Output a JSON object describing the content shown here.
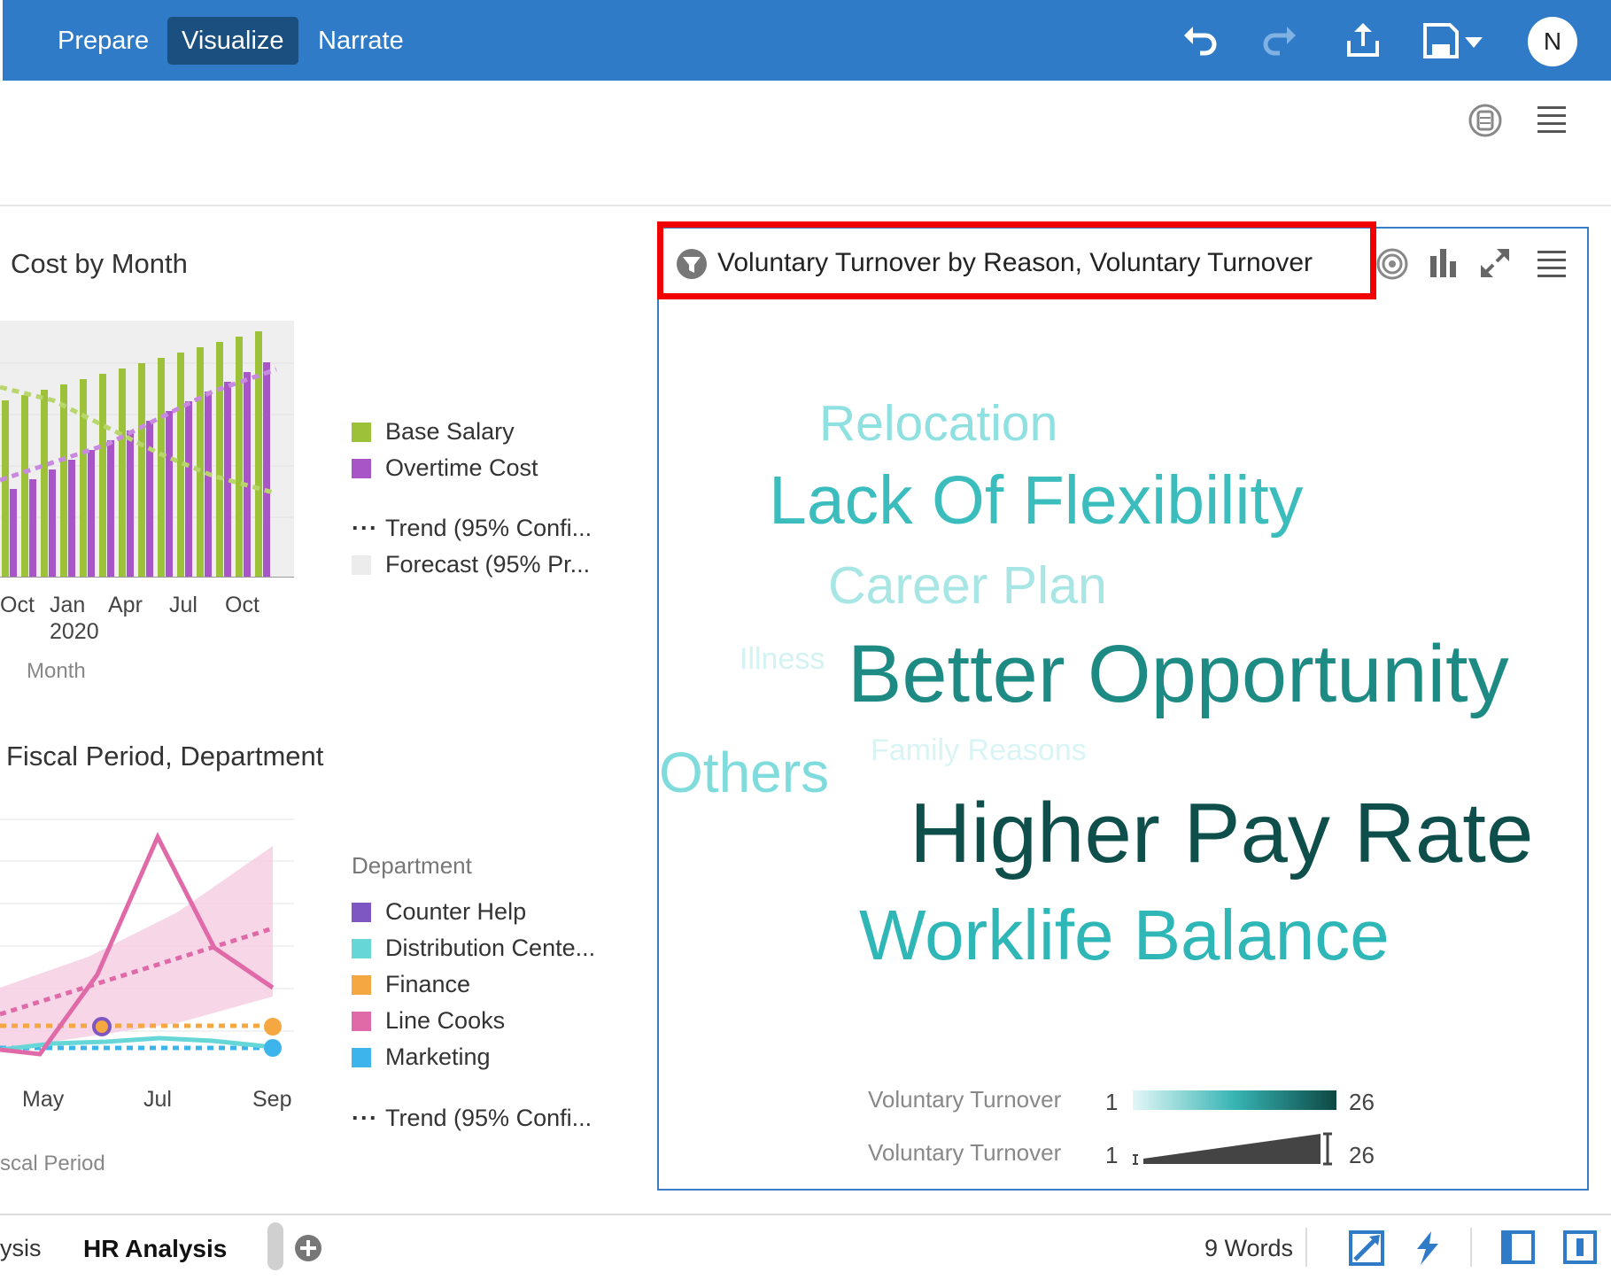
{
  "topbar": {
    "tabs": [
      {
        "label": "Prepare"
      },
      {
        "label": "Visualize",
        "active": true
      },
      {
        "label": "Narrate"
      }
    ],
    "avatar_initial": "N",
    "icons": [
      "undo-icon",
      "redo-icon",
      "export-icon",
      "save-icon",
      "chevron-down-icon"
    ]
  },
  "subbar": {
    "icons": [
      "data-panel-icon",
      "menu-icon"
    ]
  },
  "viz1": {
    "title": "Cost by Month",
    "legend": [
      "Base Salary",
      "Overtime Cost",
      "Trend (95% Confi...",
      "Forecast (95% Pr..."
    ],
    "x_ticks": [
      "Oct",
      "Jan",
      "Apr",
      "Jul",
      "Oct"
    ],
    "x_year": "2020",
    "x_title": "Month",
    "colors": {
      "base_salary": "#9dc23a",
      "overtime": "#a855c8"
    }
  },
  "viz2": {
    "title": "Fiscal Period, Department",
    "legend_title": "Department",
    "legend": [
      "Counter Help",
      "Distribution Cente...",
      "Finance",
      "Line Cooks",
      "Marketing",
      "Trend (95% Confi..."
    ],
    "x_ticks": [
      "May",
      "Jul",
      "Sep"
    ],
    "x_title": "scal Period",
    "colors": {
      "counter_help": "#7e57c2",
      "distribution": "#67d6d6",
      "finance": "#f5a742",
      "line_cooks": "#e06aa8",
      "marketing": "#3db5ec"
    }
  },
  "wordcloud": {
    "title": "Voluntary Turnover by Reason, Voluntary Turnover",
    "words": [
      {
        "text": "Relocation",
        "color": "#8fe0e0"
      },
      {
        "text": "Lack Of Flexibility",
        "color": "#3bbdbd"
      },
      {
        "text": "Career Plan",
        "color": "#a8e6e6"
      },
      {
        "text": "Illness",
        "color": "#d4f2f2"
      },
      {
        "text": "Better Opportunity",
        "color": "#1e8a84"
      },
      {
        "text": "Family Reasons",
        "color": "#d8f4f4"
      },
      {
        "text": "Others",
        "color": "#80dcdc"
      },
      {
        "text": "Higher Pay Rate",
        "color": "#0f4f4b"
      },
      {
        "text": "Worklife Balance",
        "color": "#2fb6b6"
      }
    ],
    "legend": [
      {
        "label": "Voluntary Turnover",
        "min": "1",
        "max": "26",
        "kind": "color"
      },
      {
        "label": "Voluntary Turnover",
        "min": "1",
        "max": "26",
        "kind": "size"
      }
    ],
    "icons": [
      "filter-icon",
      "target-icon",
      "bar-chart-icon",
      "expand-icon",
      "menu-icon"
    ]
  },
  "bottombar": {
    "tabs": [
      {
        "label": "ysis"
      },
      {
        "label": "HR Analysis",
        "active": true
      }
    ],
    "status": "9 Words",
    "icons": [
      "add-page-icon",
      "canvas-settings-icon",
      "auto-insights-icon",
      "panel-left-icon",
      "panel-right-icon"
    ]
  }
}
